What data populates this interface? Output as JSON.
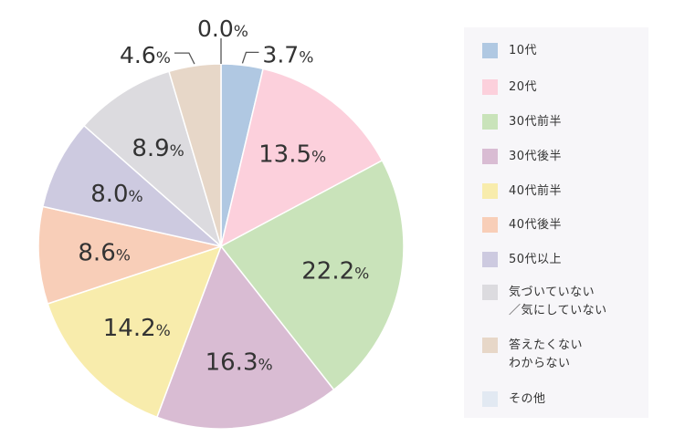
{
  "chart_data": {
    "type": "pie",
    "start": "top",
    "direction": "clockwise",
    "slices": [
      {
        "label": "10代",
        "value": 3.7,
        "display": "3.7",
        "color": "#b0c8e2"
      },
      {
        "label": "20代",
        "value": 13.5,
        "display": "13.5",
        "color": "#fcd0dc"
      },
      {
        "label": "30代前半",
        "value": 22.2,
        "display": "22.2",
        "color": "#c9e3ba"
      },
      {
        "label": "30代後半",
        "value": 16.3,
        "display": "16.3",
        "color": "#d9bcd3"
      },
      {
        "label": "40代前半",
        "value": 14.2,
        "display": "14.2",
        "color": "#f8ecac"
      },
      {
        "label": "40代後半",
        "value": 8.6,
        "display": "8.6",
        "color": "#f8ceb8"
      },
      {
        "label": "50代以上",
        "value": 8.0,
        "display": "8.0",
        "color": "#cdcae0"
      },
      {
        "label": "気づいていない\n／気にしていない",
        "value": 8.9,
        "display": "8.9",
        "color": "#dcdbdf"
      },
      {
        "label": "答えたくない\nわからない",
        "value": 4.6,
        "display": "4.6",
        "color": "#e7d7c8"
      },
      {
        "label": "その他",
        "value": 0.0,
        "display": "0.0",
        "color": "#e2e9f2"
      }
    ],
    "percent_sign": "%"
  }
}
